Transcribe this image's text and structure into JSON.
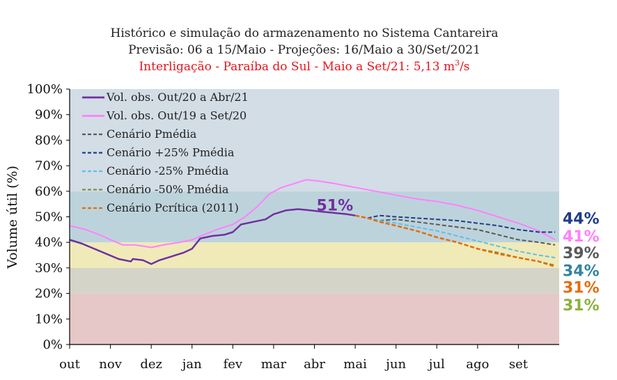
{
  "chart_data": {
    "type": "line",
    "title": "Histórico e simulação do armazenamento no Sistema Cantareira",
    "subtitle": "Previsão: 06 a 15/Maio - Projeções: 16/Maio a 30/Set/2021",
    "subtitle2_main": "Interligação - Paraíba do Sul - Maio a Set/21: 5,13 m",
    "subtitle2_sup": "3",
    "subtitle2_tail": "/s",
    "ylabel": "Volume útil (%)",
    "xlabel": "",
    "ylim": [
      0,
      100
    ],
    "xlim": [
      0,
      12
    ],
    "y_ticks": [
      {
        "v": 0,
        "label": "0%"
      },
      {
        "v": 10,
        "label": "10%"
      },
      {
        "v": 20,
        "label": "20%"
      },
      {
        "v": 30,
        "label": "30%"
      },
      {
        "v": 40,
        "label": "40%"
      },
      {
        "v": 50,
        "label": "50%"
      },
      {
        "v": 60,
        "label": "60%"
      },
      {
        "v": 70,
        "label": "70%"
      },
      {
        "v": 80,
        "label": "80%"
      },
      {
        "v": 90,
        "label": "90%"
      },
      {
        "v": 100,
        "label": "100%"
      }
    ],
    "x_ticks": [
      {
        "v": 0,
        "label": "out"
      },
      {
        "v": 1,
        "label": "nov"
      },
      {
        "v": 2,
        "label": "dez"
      },
      {
        "v": 3,
        "label": "jan"
      },
      {
        "v": 4,
        "label": "fev"
      },
      {
        "v": 5,
        "label": "mar"
      },
      {
        "v": 6,
        "label": "abr"
      },
      {
        "v": 7,
        "label": "mai"
      },
      {
        "v": 8,
        "label": "jun"
      },
      {
        "v": 9,
        "label": "jul"
      },
      {
        "v": 10,
        "label": "ago"
      },
      {
        "v": 11,
        "label": "set"
      }
    ],
    "bands": [
      {
        "from": 0,
        "to": 20,
        "color": "#e6c8c8"
      },
      {
        "from": 20,
        "to": 30,
        "color": "#d4d4c8"
      },
      {
        "from": 30,
        "to": 40,
        "color": "#f0eab8"
      },
      {
        "from": 40,
        "to": 60,
        "color": "#bdd3dc"
      },
      {
        "from": 60,
        "to": 100,
        "color": "#d2dde6"
      }
    ],
    "grid": false,
    "legend_position": "top-left",
    "series": [
      {
        "name": "Vol. obs. Out/20 a Abr/21",
        "color": "#7030a0",
        "dash": false,
        "width": 2.5,
        "x": [
          0,
          0.3,
          0.6,
          0.9,
          1.2,
          1.5,
          1.55,
          1.8,
          2.0,
          2.2,
          2.5,
          2.8,
          3.0,
          3.2,
          3.5,
          3.8,
          4.0,
          4.2,
          4.5,
          4.8,
          5.0,
          5.3,
          5.6,
          5.9,
          6.2,
          6.5,
          6.8,
          7.0
        ],
        "y": [
          41,
          39.5,
          37.5,
          35.5,
          33.5,
          32.5,
          33.5,
          33,
          31.5,
          33,
          34.5,
          36,
          37.5,
          41.5,
          42.5,
          43,
          44,
          47,
          48,
          49,
          51,
          52.5,
          53,
          52.5,
          52,
          51.5,
          51,
          50.5
        ]
      },
      {
        "name": "Vol. obs. Out/19 a Set/20",
        "color": "#ff80ff",
        "dash": false,
        "width": 2,
        "x": [
          0,
          0.4,
          0.8,
          1.0,
          1.3,
          1.6,
          2.0,
          2.3,
          2.7,
          3.0,
          3.3,
          3.6,
          4.0,
          4.3,
          4.6,
          4.9,
          5.2,
          5.5,
          5.8,
          6.1,
          6.5,
          7.0,
          7.5,
          8.0,
          8.5,
          9.0,
          9.5,
          10.0,
          10.5,
          11.0,
          11.5,
          11.9
        ],
        "y": [
          46.5,
          45,
          42.5,
          41,
          39,
          39,
          38,
          39,
          40,
          41,
          43,
          45,
          47,
          50,
          54,
          59,
          61.5,
          63,
          64.5,
          64,
          63,
          61.5,
          60,
          58.5,
          57,
          56,
          54.5,
          52.5,
          50,
          47.5,
          44.5,
          41
        ]
      },
      {
        "name": "Cenário Pmédia",
        "color": "#595959",
        "dash": true,
        "width": 2,
        "x": [
          7.0,
          7.3,
          7.6,
          8.0,
          8.5,
          9.0,
          9.5,
          10.0,
          10.5,
          11.0,
          11.5,
          11.9
        ],
        "y": [
          50.5,
          49.5,
          48.5,
          49,
          48,
          47,
          46,
          45,
          43,
          41,
          40,
          39
        ]
      },
      {
        "name": "Cenário +25% Pmédia",
        "color": "#1f3c88",
        "dash": true,
        "width": 2,
        "x": [
          7.0,
          7.3,
          7.6,
          8.0,
          8.5,
          9.0,
          9.5,
          10.0,
          10.5,
          11.0,
          11.5,
          11.9
        ],
        "y": [
          50.5,
          49.5,
          50.5,
          50,
          49.5,
          49,
          48.5,
          47.5,
          46.5,
          45,
          44,
          44
        ]
      },
      {
        "name": "Cenário -25% Pmédia",
        "color": "#5bc0e8",
        "dash": true,
        "width": 2,
        "x": [
          7.0,
          7.3,
          7.6,
          8.0,
          8.5,
          9.0,
          9.5,
          10.0,
          10.5,
          11.0,
          11.5,
          11.9
        ],
        "y": [
          50.5,
          49.5,
          48.5,
          47.5,
          46,
          44.5,
          42.5,
          40.5,
          38.5,
          36.5,
          35,
          34
        ]
      },
      {
        "name": "Cenário -50% Pmédia",
        "color": "#76923c",
        "dash": true,
        "width": 2,
        "x": [
          7.0,
          7.3,
          7.6,
          8.0,
          8.5,
          9.0,
          9.5,
          10.0,
          10.5,
          11.0,
          11.5,
          11.9
        ],
        "y": [
          50.5,
          49.5,
          48,
          46.5,
          44.5,
          42,
          40,
          37.5,
          36,
          34,
          32.5,
          31
        ]
      },
      {
        "name": "Cenário Pcrítica (2011)",
        "color": "#e46c0a",
        "dash": true,
        "width": 2.5,
        "x": [
          7.0,
          7.3,
          7.6,
          8.0,
          8.5,
          9.0,
          9.5,
          10.0,
          10.5,
          11.0,
          11.5,
          11.9
        ],
        "y": [
          50.5,
          49.5,
          48,
          46.5,
          44.5,
          42,
          40,
          37.5,
          35.5,
          34,
          32.5,
          30.5
        ]
      }
    ],
    "annotations": [
      {
        "text": "51%",
        "x": 6.95,
        "y": 52.5,
        "color": "#7030a0"
      }
    ],
    "end_labels": [
      {
        "text": "44%",
        "color": "#1f3c88",
        "y": 49.5
      },
      {
        "text": "41%",
        "color": "#ff80ff",
        "y": 42.5
      },
      {
        "text": "39%",
        "color": "#595959",
        "y": 36
      },
      {
        "text": "34%",
        "color": "#31859c",
        "y": 29
      },
      {
        "text": "31%",
        "color": "#e46c0a",
        "y": 22.5
      },
      {
        "text": "31%",
        "color": "#8db03c",
        "y": 15.5
      }
    ]
  }
}
